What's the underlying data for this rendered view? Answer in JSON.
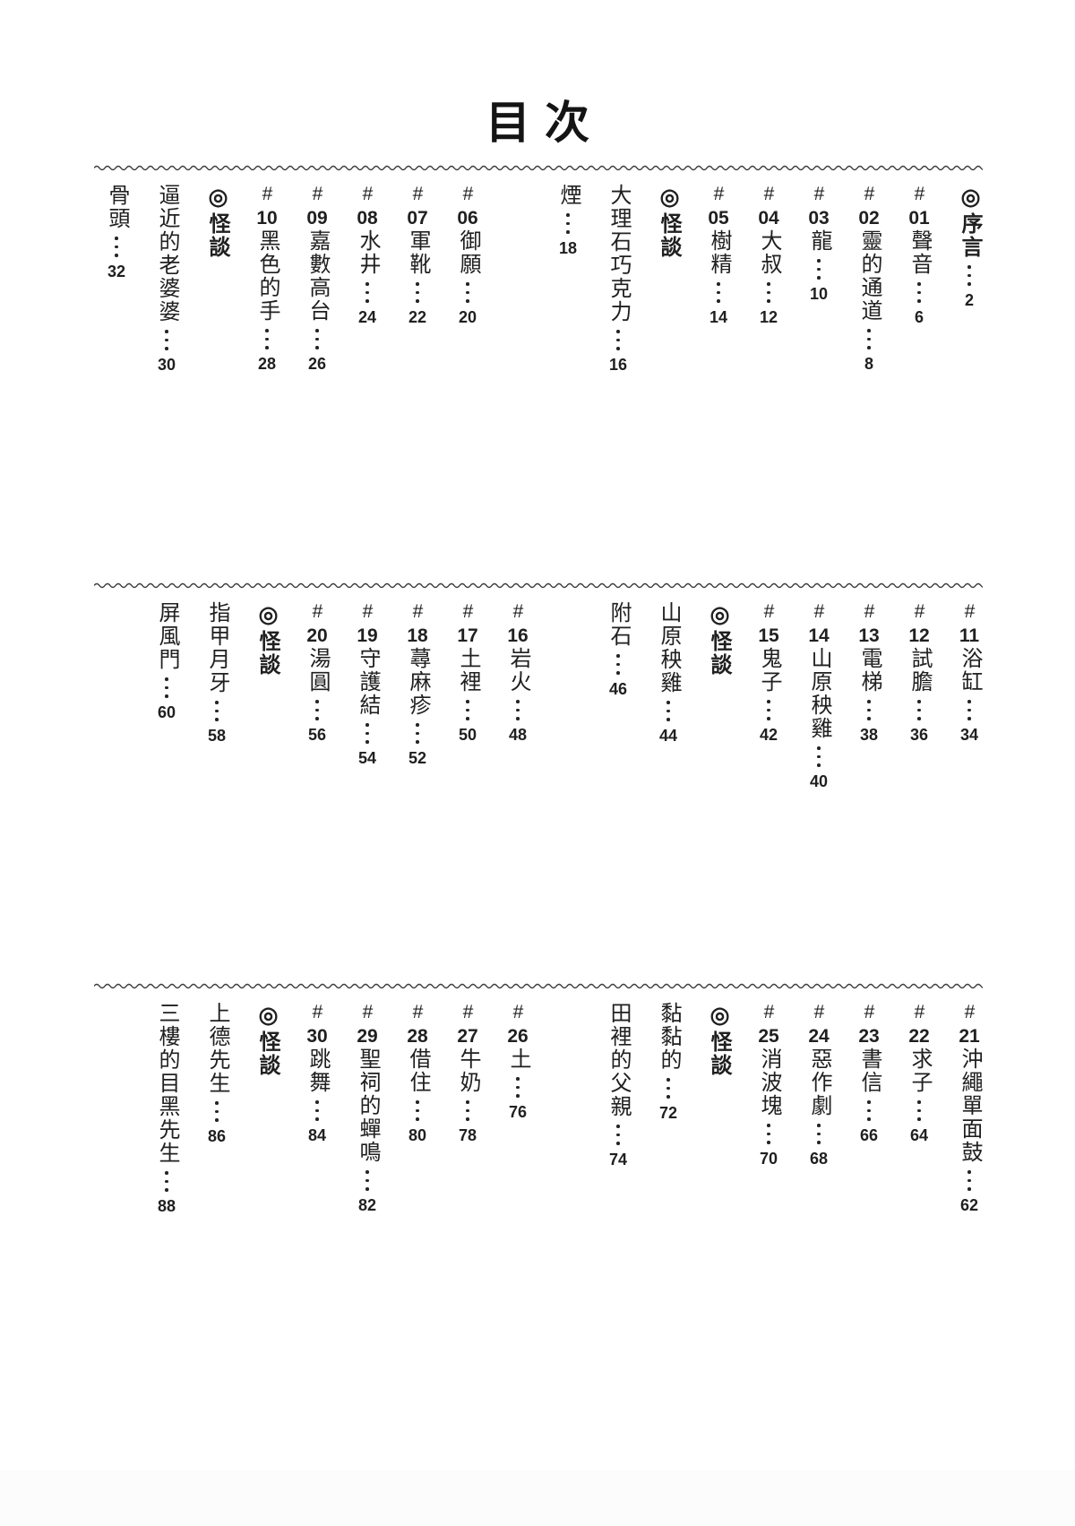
{
  "page_title": "目次",
  "text_color": "#1f1f1f",
  "divider_style": "wavy-line",
  "sections": [
    {
      "entries": [
        {
          "type": "preface",
          "symbol": "◎",
          "title": "序言",
          "page": "2"
        },
        {
          "type": "numbered",
          "hash": "#",
          "number": "01",
          "title": "聲音",
          "page": "6"
        },
        {
          "type": "numbered",
          "hash": "#",
          "number": "02",
          "title": "靈的通道",
          "page": "8"
        },
        {
          "type": "numbered",
          "hash": "#",
          "number": "03",
          "title": "龍",
          "page": "10"
        },
        {
          "type": "numbered",
          "hash": "#",
          "number": "04",
          "title": "大叔",
          "page": "12"
        },
        {
          "type": "numbered",
          "hash": "#",
          "number": "05",
          "title": "樹精",
          "page": "14"
        },
        {
          "type": "label",
          "symbol": "◎",
          "label": "怪談"
        },
        {
          "type": "story",
          "title": "大理石巧克力",
          "page": "16"
        },
        {
          "type": "story",
          "title": "煙",
          "page": "18"
        },
        {
          "type": "numbered",
          "hash": "#",
          "number": "06",
          "title": "御願",
          "page": "20",
          "group_gap": true
        },
        {
          "type": "numbered",
          "hash": "#",
          "number": "07",
          "title": "軍靴",
          "page": "22"
        },
        {
          "type": "numbered",
          "hash": "#",
          "number": "08",
          "title": "水井",
          "page": "24"
        },
        {
          "type": "numbered",
          "hash": "#",
          "number": "09",
          "title": "嘉數高台",
          "page": "26"
        },
        {
          "type": "numbered",
          "hash": "#",
          "number": "10",
          "title": "黑色的手",
          "page": "28"
        },
        {
          "type": "label",
          "symbol": "◎",
          "label": "怪談"
        },
        {
          "type": "story",
          "title": "逼近的老婆婆",
          "page": "30"
        },
        {
          "type": "story",
          "title": "骨頭",
          "page": "32"
        }
      ]
    },
    {
      "entries": [
        {
          "type": "numbered",
          "hash": "#",
          "number": "11",
          "title": "浴缸",
          "page": "34"
        },
        {
          "type": "numbered",
          "hash": "#",
          "number": "12",
          "title": "試膽",
          "page": "36"
        },
        {
          "type": "numbered",
          "hash": "#",
          "number": "13",
          "title": "電梯",
          "page": "38"
        },
        {
          "type": "numbered",
          "hash": "#",
          "number": "14",
          "title": "山原秧雞",
          "page": "40"
        },
        {
          "type": "numbered",
          "hash": "#",
          "number": "15",
          "title": "鬼子",
          "page": "42"
        },
        {
          "type": "label",
          "symbol": "◎",
          "label": "怪談"
        },
        {
          "type": "story",
          "title": "山原秧雞",
          "page": "44"
        },
        {
          "type": "story",
          "title": "附石",
          "page": "46"
        },
        {
          "type": "numbered",
          "hash": "#",
          "number": "16",
          "title": "岩火",
          "page": "48",
          "group_gap": true
        },
        {
          "type": "numbered",
          "hash": "#",
          "number": "17",
          "title": "土裡",
          "page": "50"
        },
        {
          "type": "numbered",
          "hash": "#",
          "number": "18",
          "title": "蕁麻疹",
          "page": "52"
        },
        {
          "type": "numbered",
          "hash": "#",
          "number": "19",
          "title": "守護結",
          "page": "54"
        },
        {
          "type": "numbered",
          "hash": "#",
          "number": "20",
          "title": "湯圓",
          "page": "56"
        },
        {
          "type": "label",
          "symbol": "◎",
          "label": "怪談"
        },
        {
          "type": "story",
          "title": "指甲月牙",
          "page": "58"
        },
        {
          "type": "story",
          "title": "屏風門",
          "page": "60"
        }
      ]
    },
    {
      "entries": [
        {
          "type": "numbered",
          "hash": "#",
          "number": "21",
          "title": "沖繩單面鼓",
          "page": "62"
        },
        {
          "type": "numbered",
          "hash": "#",
          "number": "22",
          "title": "求子",
          "page": "64"
        },
        {
          "type": "numbered",
          "hash": "#",
          "number": "23",
          "title": "書信",
          "page": "66"
        },
        {
          "type": "numbered",
          "hash": "#",
          "number": "24",
          "title": "惡作劇",
          "page": "68"
        },
        {
          "type": "numbered",
          "hash": "#",
          "number": "25",
          "title": "消波塊",
          "page": "70"
        },
        {
          "type": "label",
          "symbol": "◎",
          "label": "怪談"
        },
        {
          "type": "story",
          "title": "黏黏的",
          "page": "72"
        },
        {
          "type": "story",
          "title": "田裡的父親",
          "page": "74"
        },
        {
          "type": "numbered",
          "hash": "#",
          "number": "26",
          "title": "土",
          "page": "76",
          "group_gap": true
        },
        {
          "type": "numbered",
          "hash": "#",
          "number": "27",
          "title": "牛奶",
          "page": "78"
        },
        {
          "type": "numbered",
          "hash": "#",
          "number": "28",
          "title": "借住",
          "page": "80"
        },
        {
          "type": "numbered",
          "hash": "#",
          "number": "29",
          "title": "聖祠的蟬鳴",
          "page": "82"
        },
        {
          "type": "numbered",
          "hash": "#",
          "number": "30",
          "title": "跳舞",
          "page": "84"
        },
        {
          "type": "label",
          "symbol": "◎",
          "label": "怪談"
        },
        {
          "type": "story",
          "title": "上德先生",
          "page": "86"
        },
        {
          "type": "story",
          "title": "三樓的目黑先生",
          "page": "88"
        }
      ]
    }
  ]
}
